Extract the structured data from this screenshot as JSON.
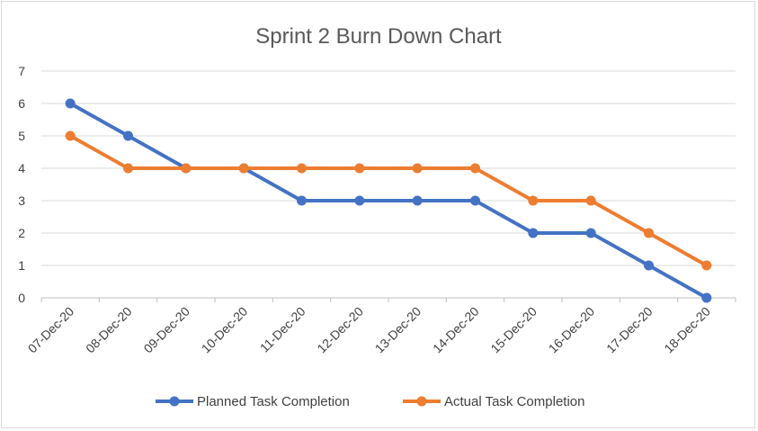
{
  "chart_data": {
    "type": "line",
    "title": "Sprint 2 Burn Down Chart",
    "xlabel": "",
    "ylabel": "",
    "ylim": [
      0,
      7
    ],
    "yticks": [
      "0",
      "1",
      "2",
      "3",
      "4",
      "5",
      "6",
      "7"
    ],
    "grid": true,
    "legend_position": "bottom",
    "categories": [
      "07-Dec-20",
      "08-Dec-20",
      "09-Dec-20",
      "10-Dec-20",
      "11-Dec-20",
      "12-Dec-20",
      "13-Dec-20",
      "14-Dec-20",
      "15-Dec-20",
      "16-Dec-20",
      "17-Dec-20",
      "18-Dec-20"
    ],
    "series": [
      {
        "name": "Planned Task Completion",
        "color": "#4472c4",
        "values": [
          6,
          5,
          4,
          4,
          3,
          3,
          3,
          3,
          2,
          2,
          1,
          0
        ]
      },
      {
        "name": "Actual Task Completion",
        "color": "#ed7d31",
        "values": [
          5,
          4,
          4,
          4,
          4,
          4,
          4,
          4,
          3,
          3,
          2,
          1
        ]
      }
    ]
  }
}
